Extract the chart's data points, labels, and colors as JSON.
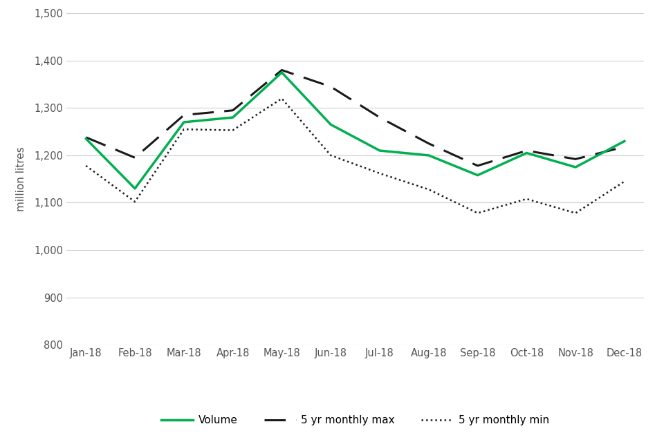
{
  "months": [
    "Jan-18",
    "Feb-18",
    "Mar-18",
    "Apr-18",
    "May-18",
    "Jun-18",
    "Jul-18",
    "Aug-18",
    "Sep-18",
    "Oct-18",
    "Nov-18",
    "Dec-18"
  ],
  "volume": [
    1235,
    1130,
    1270,
    1280,
    1375,
    1265,
    1210,
    1200,
    1158,
    1205,
    1175,
    1230
  ],
  "monthly_max": [
    1238,
    1195,
    1285,
    1295,
    1380,
    1345,
    1280,
    1225,
    1178,
    1210,
    1192,
    1218
  ],
  "monthly_min": [
    1178,
    1102,
    1255,
    1253,
    1320,
    1200,
    1162,
    1128,
    1078,
    1108,
    1078,
    1145
  ],
  "volume_color": "#00b050",
  "max_color": "#1a1a1a",
  "min_color": "#1a1a1a",
  "ylabel": "million litres",
  "ylim": [
    800,
    1500
  ],
  "yticks": [
    800,
    900,
    1000,
    1100,
    1200,
    1300,
    1400,
    1500
  ],
  "legend_labels": [
    "Volume",
    "5 yr monthly max",
    "5 yr monthly min"
  ],
  "bg_color": "#ffffff",
  "grid_color": "#d0d0d0"
}
